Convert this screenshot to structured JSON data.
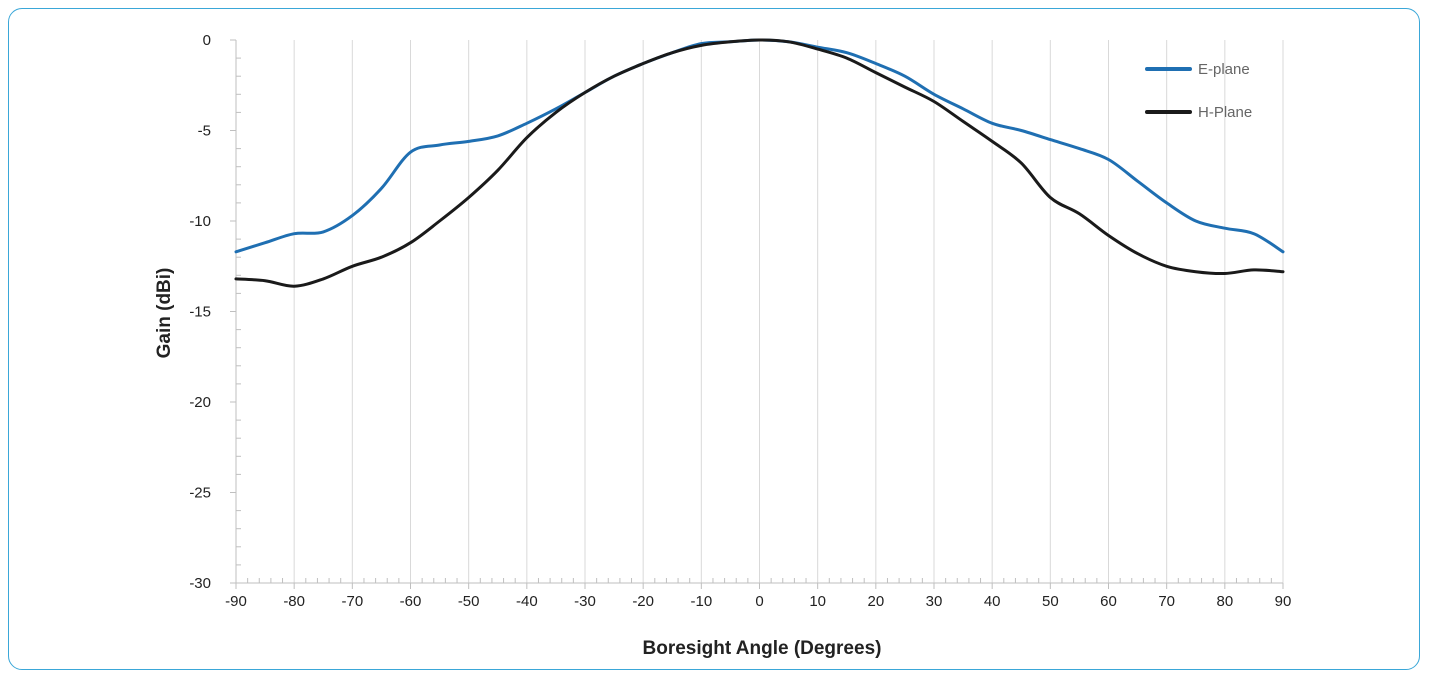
{
  "chart_data": {
    "type": "line",
    "title": "",
    "xlabel": "Boresight Angle (Degrees)",
    "ylabel": "Gain (dBi)",
    "xlim": [
      -90,
      90
    ],
    "ylim": [
      -30,
      0
    ],
    "x_ticks": [
      -90,
      -80,
      -70,
      -60,
      -50,
      -40,
      -30,
      -20,
      -10,
      0,
      10,
      20,
      30,
      40,
      50,
      60,
      70,
      80,
      90
    ],
    "y_ticks": [
      0,
      -5,
      -10,
      -15,
      -20,
      -25,
      -30
    ],
    "grid": "vertical",
    "legend_position": "top-right",
    "x": [
      -90,
      -85,
      -80,
      -75,
      -70,
      -65,
      -60,
      -55,
      -50,
      -45,
      -40,
      -35,
      -30,
      -25,
      -20,
      -15,
      -10,
      -5,
      0,
      5,
      10,
      15,
      20,
      25,
      30,
      35,
      40,
      45,
      50,
      55,
      60,
      65,
      70,
      75,
      80,
      85,
      90
    ],
    "series": [
      {
        "name": "E-plane",
        "color": "#1f6fb2",
        "values": [
          -11.7,
          -11.2,
          -10.7,
          -10.6,
          -9.7,
          -8.2,
          -6.2,
          -5.8,
          -5.6,
          -5.3,
          -4.6,
          -3.8,
          -2.9,
          -2.0,
          -1.3,
          -0.7,
          -0.2,
          -0.1,
          0.0,
          -0.1,
          -0.4,
          -0.7,
          -1.3,
          -2.0,
          -3.0,
          -3.8,
          -4.6,
          -5.0,
          -5.5,
          -6.0,
          -6.6,
          -7.8,
          -9.0,
          -10.0,
          -10.4,
          -10.7,
          -11.7
        ]
      },
      {
        "name": "H-Plane",
        "color": "#1a1a1a",
        "values": [
          -13.2,
          -13.3,
          -13.6,
          -13.2,
          -12.5,
          -12.0,
          -11.2,
          -10.0,
          -8.7,
          -7.2,
          -5.4,
          -4.0,
          -2.9,
          -2.0,
          -1.3,
          -0.7,
          -0.3,
          -0.1,
          0.0,
          -0.1,
          -0.5,
          -1.0,
          -1.8,
          -2.6,
          -3.4,
          -4.5,
          -5.6,
          -6.8,
          -8.7,
          -9.6,
          -10.8,
          -11.8,
          -12.5,
          -12.8,
          -12.9,
          -12.7,
          -12.8
        ]
      }
    ]
  }
}
